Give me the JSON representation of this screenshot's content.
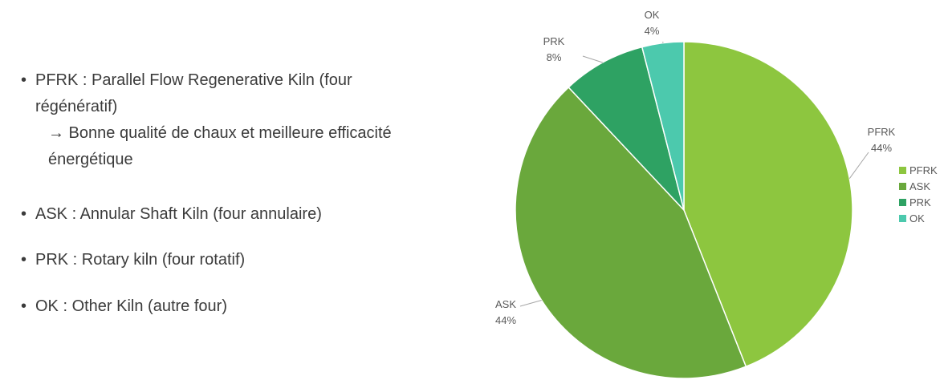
{
  "bullets": [
    {
      "text": "PFRK : Parallel Flow Regenerative Kiln (four régénératif)",
      "sub": "→ Bonne qualité de chaux et meilleure efficacité énergétique"
    },
    {
      "text": "ASK : Annular Shaft Kiln (four annulaire)"
    },
    {
      "text": "PRK : Rotary kiln (four rotatif)"
    },
    {
      "text": "OK : Other Kiln (autre four)"
    }
  ],
  "chart_data": {
    "type": "pie",
    "categories": [
      "PFRK",
      "ASK",
      "PRK",
      "OK"
    ],
    "values": [
      44,
      44,
      8,
      4
    ],
    "value_labels": [
      "44%",
      "44%",
      "8%",
      "4%"
    ],
    "colors": [
      "#8dc63f",
      "#6aa83c",
      "#2ea263",
      "#4cc9ad"
    ],
    "legend": "right"
  }
}
